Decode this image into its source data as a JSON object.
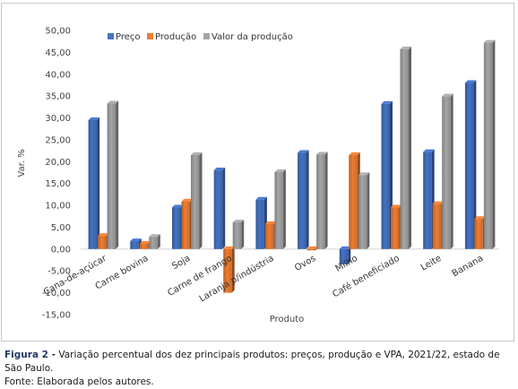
{
  "chart_data": {
    "type": "bar",
    "categories": [
      "Cana-de-açúcar",
      "Carne bovina",
      "Soja",
      "Carne de frango",
      "Laranja p/indústria",
      "Ovos",
      "Milho",
      "Café beneficiado",
      "Leite",
      "Banana"
    ],
    "series": [
      {
        "name": "Preço",
        "color": "#4472c4",
        "values": [
          29.5,
          1.8,
          9.5,
          18.0,
          11.3,
          22.0,
          -3.5,
          33.2,
          22.2,
          38.0
        ]
      },
      {
        "name": "Produção",
        "color": "#ed7d31",
        "values": [
          3.0,
          1.2,
          10.9,
          -10.0,
          5.7,
          -0.3,
          21.5,
          9.5,
          10.3,
          6.9
        ]
      },
      {
        "name": "Valor da produção",
        "color": "#a5a5a5",
        "values": [
          33.3,
          2.8,
          21.5,
          6.1,
          17.6,
          21.6,
          16.9,
          45.7,
          34.9,
          47.2
        ]
      }
    ],
    "ylim": [
      -15,
      50
    ],
    "yticks": [
      "-15,00",
      "-10,00",
      "-5,00",
      "0,00",
      "5,00",
      "10,00",
      "15,00",
      "20,00",
      "25,00",
      "30,00",
      "35,00",
      "40,00",
      "45,00",
      "50,00"
    ],
    "ylabel": "Var. %",
    "xlabel": "Produto",
    "legend_position": "top-left",
    "grid": false
  },
  "caption": {
    "figure_label": "Figura 2 -",
    "text": "Variação percentual dos dez principais produtos: preços, produção e VPA, 2021/22, estado de São Paulo.",
    "source": "Fonte: Elaborada pelos autores."
  }
}
